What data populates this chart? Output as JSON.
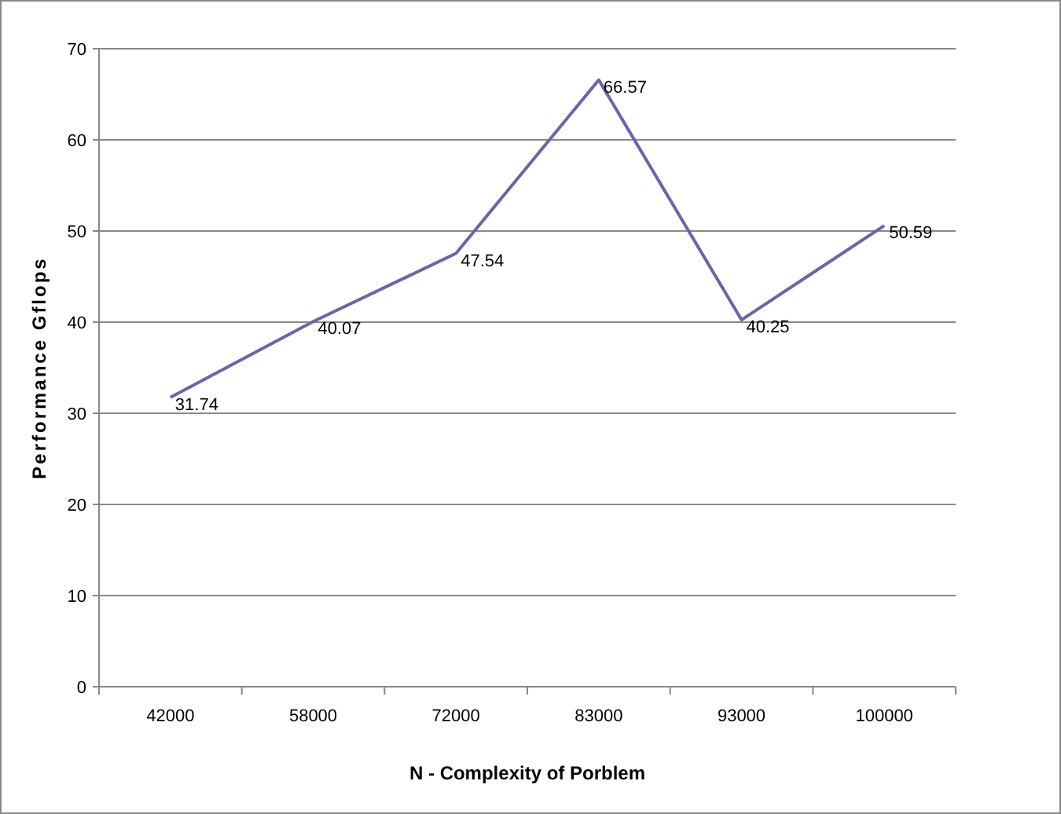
{
  "chart_data": {
    "type": "line",
    "xlabel": "N - Complexity of Porblem",
    "ylabel": "Performance Gflops",
    "categories": [
      "42000",
      "58000",
      "72000",
      "83000",
      "93000",
      "100000"
    ],
    "series": [
      {
        "color": "#6a64a8",
        "values": [
          31.74,
          40.07,
          47.54,
          66.57,
          40.25,
          50.59
        ]
      }
    ],
    "ylim": [
      0,
      70
    ],
    "yticks": [
      0,
      10,
      20,
      30,
      40,
      50,
      60,
      70
    ],
    "grid": "y",
    "data_labels": true,
    "marker": "none",
    "line_style": "solid"
  }
}
